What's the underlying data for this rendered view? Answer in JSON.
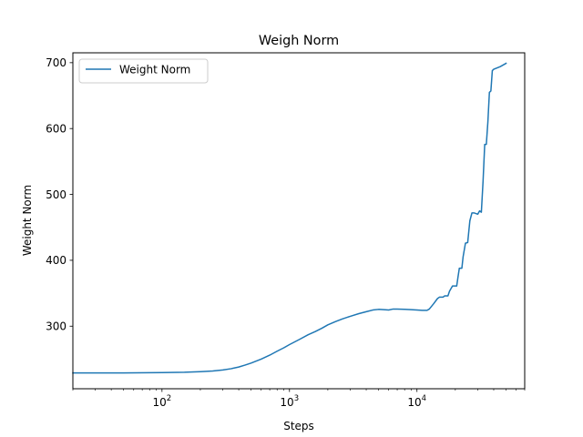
{
  "chart_data": {
    "type": "line",
    "title": "Weigh Norm",
    "xlabel": "Steps",
    "ylabel": "Weight Norm",
    "xscale": "log",
    "xlim": [
      20,
      70000
    ],
    "ylim": [
      205,
      715
    ],
    "xticks_major": [
      {
        "value": 100,
        "base": "10",
        "exp": "2"
      },
      {
        "value": 1000,
        "base": "10",
        "exp": "3"
      },
      {
        "value": 10000,
        "base": "10",
        "exp": "4"
      }
    ],
    "yticks": [
      {
        "value": 300,
        "label": "300"
      },
      {
        "value": 400,
        "label": "400"
      },
      {
        "value": 500,
        "label": "500"
      },
      {
        "value": 600,
        "label": "600"
      },
      {
        "value": 700,
        "label": "700"
      }
    ],
    "grid": false,
    "legend": {
      "position": "top-left"
    },
    "series": [
      {
        "name": "Weight Norm",
        "color": "#1f77b4",
        "points": [
          [
            20,
            229
          ],
          [
            50,
            229
          ],
          [
            100,
            229.5
          ],
          [
            150,
            230
          ],
          [
            200,
            231
          ],
          [
            250,
            232
          ],
          [
            300,
            233.5
          ],
          [
            350,
            235.5
          ],
          [
            400,
            238
          ],
          [
            450,
            241
          ],
          [
            500,
            244
          ],
          [
            600,
            250
          ],
          [
            700,
            256
          ],
          [
            800,
            262
          ],
          [
            900,
            267
          ],
          [
            1000,
            272
          ],
          [
            1200,
            280
          ],
          [
            1400,
            287
          ],
          [
            1600,
            292
          ],
          [
            1800,
            297
          ],
          [
            2000,
            302
          ],
          [
            2300,
            307
          ],
          [
            2600,
            311
          ],
          [
            3000,
            315
          ],
          [
            3500,
            319
          ],
          [
            4000,
            322
          ],
          [
            4500,
            324.5
          ],
          [
            5000,
            325.5
          ],
          [
            5500,
            325
          ],
          [
            6000,
            324.5
          ],
          [
            6500,
            326
          ],
          [
            7000,
            326
          ],
          [
            8000,
            325.5
          ],
          [
            9000,
            325
          ],
          [
            10000,
            324.5
          ],
          [
            11000,
            324
          ],
          [
            12000,
            324
          ],
          [
            12500,
            326
          ],
          [
            13500,
            334
          ],
          [
            14500,
            342
          ],
          [
            15000,
            344
          ],
          [
            16000,
            344
          ],
          [
            16500,
            346
          ],
          [
            17500,
            346
          ],
          [
            18000,
            353
          ],
          [
            19000,
            361
          ],
          [
            20500,
            361
          ],
          [
            21000,
            375
          ],
          [
            21500,
            388
          ],
          [
            22500,
            388
          ],
          [
            23000,
            405
          ],
          [
            24000,
            426
          ],
          [
            25000,
            427
          ],
          [
            26000,
            460
          ],
          [
            27000,
            472
          ],
          [
            28000,
            472
          ],
          [
            29000,
            471
          ],
          [
            30000,
            470
          ],
          [
            31000,
            475
          ],
          [
            32000,
            473
          ],
          [
            33000,
            520
          ],
          [
            34000,
            576
          ],
          [
            35000,
            576
          ],
          [
            36000,
            610
          ],
          [
            37000,
            655
          ],
          [
            38000,
            657
          ],
          [
            39000,
            688
          ],
          [
            40000,
            690
          ],
          [
            45000,
            694
          ],
          [
            50000,
            699
          ]
        ]
      }
    ]
  }
}
